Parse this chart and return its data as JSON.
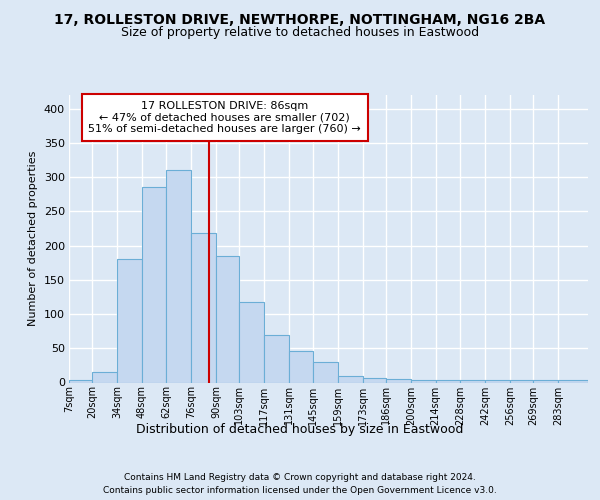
{
  "title1": "17, ROLLESTON DRIVE, NEWTHORPE, NOTTINGHAM, NG16 2BA",
  "title2": "Size of property relative to detached houses in Eastwood",
  "xlabel": "Distribution of detached houses by size in Eastwood",
  "ylabel": "Number of detached properties",
  "footnote1": "Contains HM Land Registry data © Crown copyright and database right 2024.",
  "footnote2": "Contains public sector information licensed under the Open Government Licence v3.0.",
  "bar_labels": [
    "7sqm",
    "20sqm",
    "34sqm",
    "48sqm",
    "62sqm",
    "76sqm",
    "90sqm",
    "103sqm",
    "117sqm",
    "131sqm",
    "145sqm",
    "159sqm",
    "173sqm",
    "186sqm",
    "200sqm",
    "214sqm",
    "228sqm",
    "242sqm",
    "256sqm",
    "269sqm",
    "283sqm"
  ],
  "heights": [
    3,
    15,
    181,
    285,
    310,
    218,
    185,
    118,
    70,
    46,
    30,
    9,
    6,
    5,
    4,
    3,
    3,
    3,
    3,
    3,
    3
  ],
  "bar_color": "#c5d8f0",
  "bar_edge_color": "#6baed6",
  "vline_value": 86,
  "vline_color": "#cc0000",
  "bin_edges": [
    7,
    20,
    34,
    48,
    62,
    76,
    90,
    103,
    117,
    131,
    145,
    159,
    173,
    186,
    200,
    214,
    228,
    242,
    256,
    269,
    283,
    300
  ],
  "annotation_line1": "17 ROLLESTON DRIVE: 86sqm",
  "annotation_line2": "← 47% of detached houses are smaller (702)",
  "annotation_line3": "51% of semi-detached houses are larger (760) →",
  "annotation_box_facecolor": "#ffffff",
  "annotation_box_edgecolor": "#cc0000",
  "ylim": [
    0,
    420
  ],
  "yticks": [
    0,
    50,
    100,
    150,
    200,
    250,
    300,
    350,
    400
  ],
  "bg_color": "#dce8f5",
  "grid_color": "#ffffff",
  "title1_fontsize": 10,
  "title2_fontsize": 9,
  "ylabel_fontsize": 8,
  "xlabel_fontsize": 9,
  "footnote_fontsize": 6.5
}
